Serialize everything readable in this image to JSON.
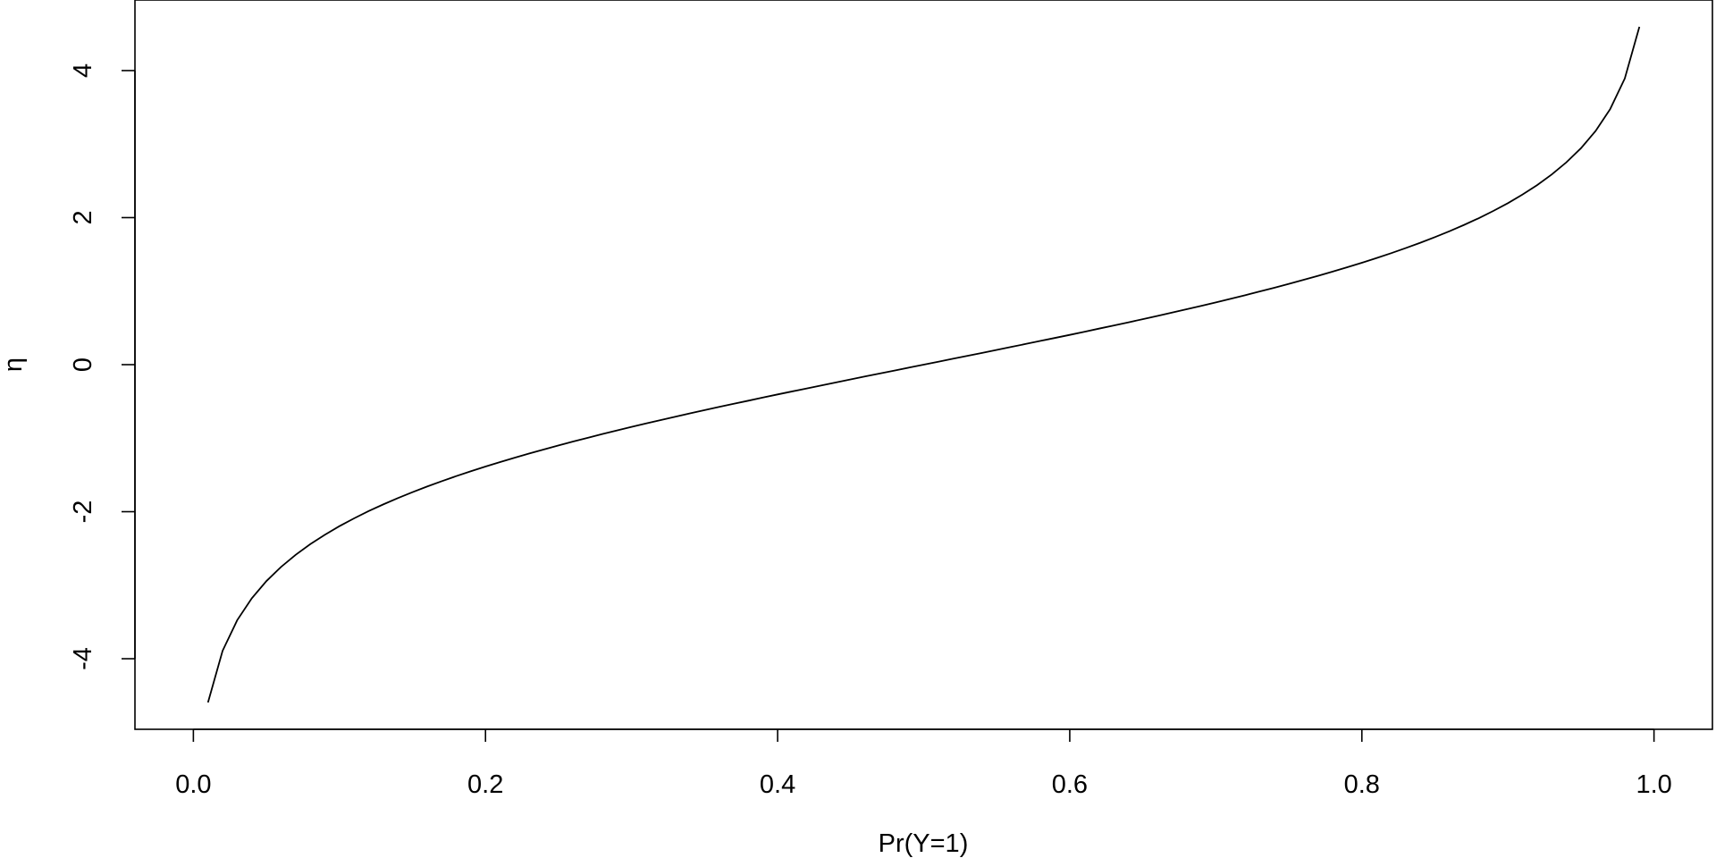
{
  "chart_data": {
    "type": "line",
    "xlabel": "Pr(Y=1)",
    "ylabel": "η",
    "xlim": [
      -0.04,
      1.04
    ],
    "ylim": [
      -4.96,
      4.96
    ],
    "x_ticks": [
      0.0,
      0.2,
      0.4,
      0.6,
      0.8,
      1.0
    ],
    "x_tick_labels": [
      "0.0",
      "0.2",
      "0.4",
      "0.6",
      "0.8",
      "1.0"
    ],
    "y_ticks": [
      -4,
      -2,
      0,
      2,
      4
    ],
    "y_tick_labels": [
      "-4",
      "-2",
      "0",
      "2",
      "4"
    ],
    "grid": false,
    "line_color": "#000000",
    "series": [
      {
        "x": [
          0.01,
          0.02,
          0.03,
          0.04,
          0.05,
          0.06,
          0.07,
          0.08,
          0.09,
          0.1,
          0.11,
          0.12,
          0.13,
          0.14,
          0.15,
          0.16,
          0.17,
          0.18,
          0.19,
          0.2,
          0.21,
          0.22,
          0.23,
          0.24,
          0.25,
          0.26,
          0.27,
          0.28,
          0.29,
          0.3,
          0.31,
          0.32,
          0.33,
          0.34,
          0.35,
          0.36,
          0.37,
          0.38,
          0.39,
          0.4,
          0.41,
          0.42,
          0.43,
          0.44,
          0.45,
          0.46,
          0.47,
          0.48,
          0.49,
          0.5,
          0.51,
          0.52,
          0.53,
          0.54,
          0.55,
          0.56,
          0.57,
          0.58,
          0.59,
          0.6,
          0.61,
          0.62,
          0.63,
          0.64,
          0.65,
          0.66,
          0.67,
          0.68,
          0.69,
          0.7,
          0.71,
          0.72,
          0.73,
          0.74,
          0.75,
          0.76,
          0.77,
          0.78,
          0.79,
          0.8,
          0.81,
          0.82,
          0.83,
          0.84,
          0.85,
          0.86,
          0.87,
          0.88,
          0.89,
          0.9,
          0.91,
          0.92,
          0.93,
          0.94,
          0.95,
          0.96,
          0.97,
          0.98,
          0.99
        ],
        "y": [
          -4.595,
          -3.892,
          -3.476,
          -3.178,
          -2.944,
          -2.752,
          -2.587,
          -2.442,
          -2.314,
          -2.197,
          -2.091,
          -1.992,
          -1.901,
          -1.815,
          -1.735,
          -1.658,
          -1.586,
          -1.516,
          -1.45,
          -1.386,
          -1.325,
          -1.266,
          -1.208,
          -1.153,
          -1.099,
          -1.046,
          -0.995,
          -0.944,
          -0.895,
          -0.847,
          -0.8,
          -0.754,
          -0.708,
          -0.663,
          -0.619,
          -0.575,
          -0.532,
          -0.49,
          -0.447,
          -0.405,
          -0.364,
          -0.323,
          -0.282,
          -0.241,
          -0.201,
          -0.16,
          -0.12,
          -0.08,
          -0.04,
          0.0,
          0.04,
          0.08,
          0.12,
          0.16,
          0.201,
          0.241,
          0.282,
          0.323,
          0.364,
          0.405,
          0.447,
          0.49,
          0.532,
          0.575,
          0.619,
          0.663,
          0.708,
          0.754,
          0.8,
          0.847,
          0.895,
          0.944,
          0.995,
          1.046,
          1.099,
          1.153,
          1.208,
          1.266,
          1.325,
          1.386,
          1.45,
          1.516,
          1.586,
          1.658,
          1.735,
          1.815,
          1.901,
          1.992,
          2.091,
          2.197,
          2.314,
          2.442,
          2.587,
          2.752,
          2.944,
          3.178,
          3.476,
          3.892,
          4.595
        ]
      }
    ]
  }
}
